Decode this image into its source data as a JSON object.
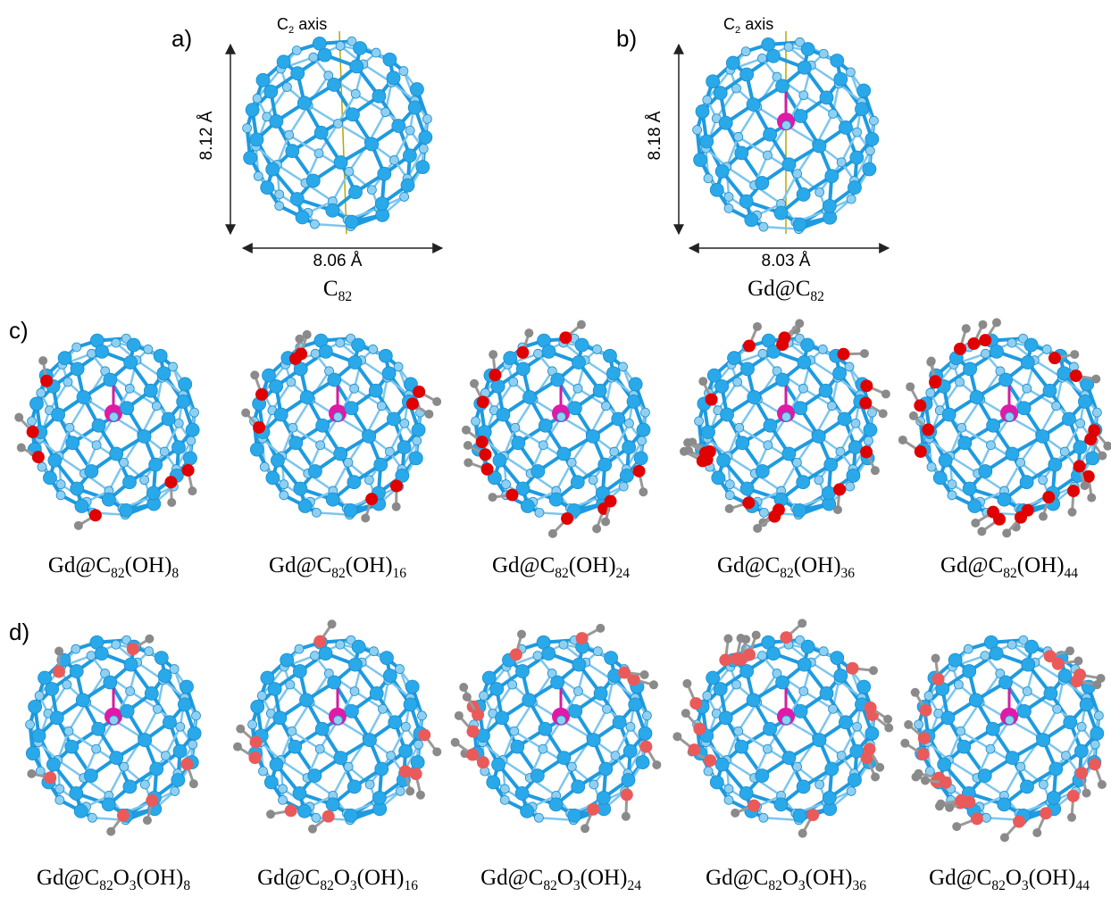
{
  "panels": [
    {
      "label": "a)",
      "axis": "C2 axis",
      "height": "8.12 Å",
      "width": "8.06 Å",
      "formula": "C82"
    },
    {
      "label": "b)",
      "axis": "C2 axis",
      "height": "8.18 Å",
      "width": "8.03 Å",
      "formula": "Gd@C82"
    }
  ],
  "rows": [
    {
      "label": "c)",
      "formulas": [
        "Gd@C82(OH)8",
        "Gd@C82(OH)16",
        "Gd@C82(OH)24",
        "Gd@C82(OH)36",
        "Gd@C82(OH)44"
      ]
    },
    {
      "label": "d)",
      "formulas": [
        "Gd@C82O3(OH)8",
        "Gd@C82O3(OH)16",
        "Gd@C82O3(OH)24",
        "Gd@C82O3(OH)36",
        "Gd@C82O3(OH)44"
      ]
    }
  ]
}
